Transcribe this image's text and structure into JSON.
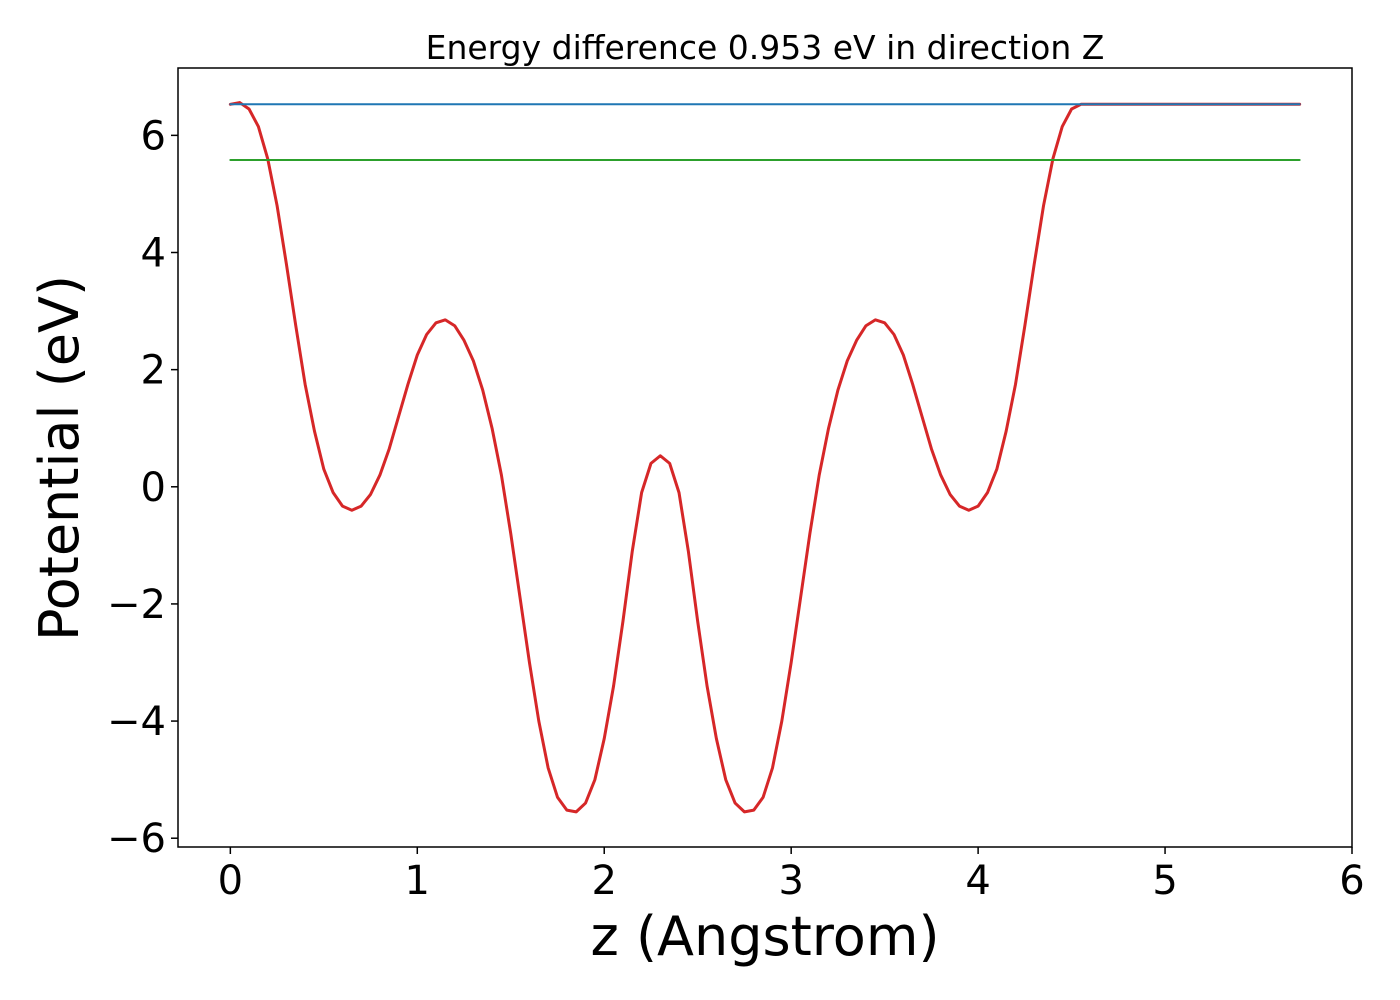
{
  "chart_data": {
    "type": "line",
    "title": "Energy difference 0.953 eV in direction Z",
    "xlabel": "z (Angstrom)",
    "ylabel": "Potential (eV)",
    "xlim": [
      -0.28,
      6.0
    ],
    "ylim": [
      -6.15,
      7.15
    ],
    "xticks": [
      0,
      1,
      2,
      3,
      4,
      5,
      6
    ],
    "xtick_labels": [
      "0",
      "1",
      "2",
      "3",
      "4",
      "5",
      "6"
    ],
    "yticks": [
      -6,
      -4,
      -2,
      0,
      2,
      4,
      6
    ],
    "ytick_labels": [
      "−6",
      "−4",
      "−2",
      "0",
      "2",
      "4",
      "6"
    ],
    "grid": false,
    "series": [
      {
        "color": "#d62728",
        "x": [
          0.0,
          0.05,
          0.1,
          0.15,
          0.2,
          0.25,
          0.3,
          0.35,
          0.4,
          0.45,
          0.5,
          0.55,
          0.6,
          0.65,
          0.7,
          0.75,
          0.8,
          0.85,
          0.9,
          0.95,
          1.0,
          1.05,
          1.1,
          1.15,
          1.2,
          1.25,
          1.3,
          1.35,
          1.4,
          1.45,
          1.5,
          1.55,
          1.6,
          1.65,
          1.7,
          1.75,
          1.8,
          1.85,
          1.9,
          1.95,
          2.0,
          2.05,
          2.1,
          2.15,
          2.2,
          2.25,
          2.3,
          2.35,
          2.4,
          2.45,
          2.5,
          2.55,
          2.6,
          2.65,
          2.7,
          2.75,
          2.8,
          2.85,
          2.9,
          2.95,
          3.0,
          3.05,
          3.1,
          3.15,
          3.2,
          3.25,
          3.3,
          3.35,
          3.4,
          3.45,
          3.5,
          3.55,
          3.6,
          3.65,
          3.7,
          3.75,
          3.8,
          3.85,
          3.9,
          3.95,
          4.0,
          4.05,
          4.1,
          4.15,
          4.2,
          4.25,
          4.3,
          4.35,
          4.4,
          4.45,
          4.5,
          4.55,
          4.6,
          4.65,
          4.7,
          4.75,
          4.8,
          4.85,
          4.9,
          4.95,
          5.0,
          5.05,
          5.1,
          5.15,
          5.2,
          5.25,
          5.3,
          5.35,
          5.4,
          5.45,
          5.5,
          5.55,
          5.6,
          5.65,
          5.7,
          5.72
        ],
        "y": [
          6.53,
          6.56,
          6.45,
          6.15,
          5.6,
          4.8,
          3.8,
          2.75,
          1.75,
          0.95,
          0.3,
          -0.1,
          -0.33,
          -0.4,
          -0.33,
          -0.13,
          0.2,
          0.65,
          1.2,
          1.75,
          2.25,
          2.6,
          2.8,
          2.85,
          2.75,
          2.5,
          2.15,
          1.65,
          1.0,
          0.2,
          -0.8,
          -1.9,
          -3.0,
          -4.0,
          -4.8,
          -5.3,
          -5.52,
          -5.55,
          -5.4,
          -5.0,
          -4.3,
          -3.4,
          -2.3,
          -1.1,
          -0.1,
          0.4,
          0.53,
          0.4,
          -0.1,
          -1.1,
          -2.3,
          -3.4,
          -4.3,
          -5.0,
          -5.4,
          -5.55,
          -5.52,
          -5.3,
          -4.8,
          -4.0,
          -3.0,
          -1.9,
          -0.8,
          0.2,
          1.0,
          1.65,
          2.15,
          2.5,
          2.75,
          2.85,
          2.8,
          2.6,
          2.25,
          1.75,
          1.2,
          0.65,
          0.2,
          -0.13,
          -0.33,
          -0.4,
          -0.33,
          -0.1,
          0.3,
          0.95,
          1.75,
          2.75,
          3.8,
          4.8,
          5.6,
          6.15,
          6.45,
          6.53,
          6.53,
          6.53,
          6.53,
          6.53,
          6.53,
          6.53,
          6.53,
          6.53,
          6.53,
          6.53,
          6.53,
          6.53,
          6.53,
          6.53,
          6.53,
          6.53,
          6.53,
          6.53,
          6.53,
          6.53,
          6.53,
          6.53,
          6.53,
          6.53
        ]
      },
      {
        "color": "#1f77b4",
        "x": [
          0.0,
          5.72
        ],
        "y": [
          6.53,
          6.53
        ]
      },
      {
        "color": "#2ca02c",
        "x": [
          0.0,
          5.72
        ],
        "y": [
          5.58,
          5.58
        ]
      }
    ]
  }
}
